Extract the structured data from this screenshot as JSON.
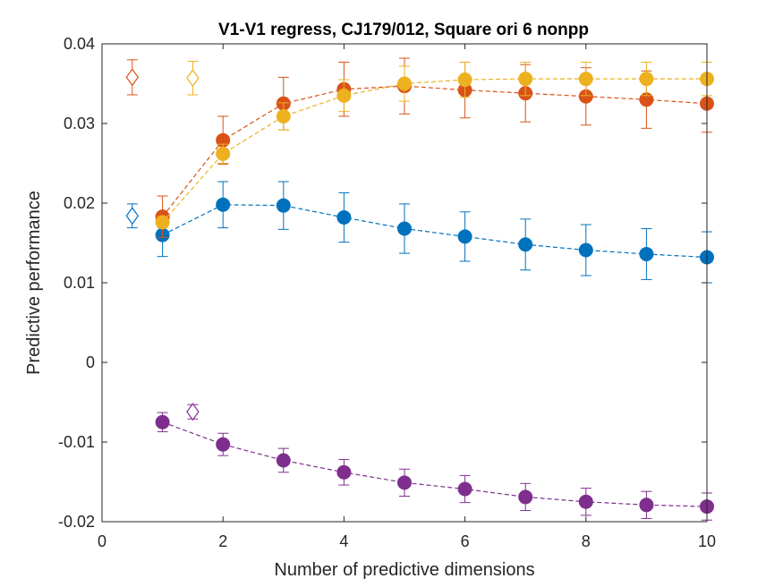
{
  "chart_data": {
    "type": "scatter",
    "title": "V1-V1 regress, CJ179/012, Square ori 6 nonpp",
    "xlabel": "Number of predictive dimensions",
    "ylabel": "Predictive performance",
    "xlim": [
      0,
      10
    ],
    "ylim": [
      -0.02,
      0.04
    ],
    "xticks": [
      0,
      2,
      4,
      6,
      8,
      10
    ],
    "xtick_labels": [
      "0",
      "2",
      "4",
      "6",
      "8",
      "10"
    ],
    "yticks": [
      -0.02,
      -0.01,
      0,
      0.01,
      0.02,
      0.03,
      0.04
    ],
    "ytick_labels": [
      "-0.02",
      "-0.01",
      "0",
      "0.01",
      "0.02",
      "0.03",
      "0.04"
    ],
    "grid": false,
    "box": true,
    "x": [
      1,
      2,
      3,
      4,
      5,
      6,
      7,
      8,
      9,
      10
    ],
    "series": [
      {
        "color": "#0072BD",
        "values": [
          0.016,
          0.0198,
          0.0197,
          0.0182,
          0.0168,
          0.0158,
          0.0148,
          0.0141,
          0.0136,
          0.0132
        ],
        "errors": [
          0.0027,
          0.0029,
          0.003,
          0.0031,
          0.0031,
          0.0031,
          0.0032,
          0.0032,
          0.0032,
          0.0032
        ],
        "reference": {
          "x": 0.5,
          "value": 0.0184,
          "error": 0.0015
        }
      },
      {
        "color": "#D95319",
        "values": [
          0.0183,
          0.0279,
          0.0325,
          0.0343,
          0.0347,
          0.0342,
          0.0338,
          0.0334,
          0.033,
          0.0325
        ],
        "errors": [
          0.0026,
          0.003,
          0.0033,
          0.0034,
          0.0035,
          0.0035,
          0.0036,
          0.0036,
          0.0036,
          0.0036
        ],
        "reference": {
          "x": 0.5,
          "value": 0.0358,
          "error": 0.0022
        }
      },
      {
        "color": "#EDB120",
        "values": [
          0.0176,
          0.0262,
          0.0309,
          0.0335,
          0.035,
          0.0355,
          0.0356,
          0.0356,
          0.0356,
          0.0356
        ],
        "errors": [
          0.0007,
          0.0012,
          0.0017,
          0.002,
          0.0022,
          0.0022,
          0.0021,
          0.0021,
          0.0021,
          0.0021
        ],
        "reference": {
          "x": 1.5,
          "value": 0.0357,
          "error": 0.0021
        }
      },
      {
        "color": "#7E2F8E",
        "values": [
          -0.0075,
          -0.0103,
          -0.0123,
          -0.0138,
          -0.0151,
          -0.0159,
          -0.0169,
          -0.0175,
          -0.0179,
          -0.0181
        ],
        "errors": [
          0.0012,
          0.0014,
          0.0015,
          0.0016,
          0.0017,
          0.0017,
          0.0017,
          0.0017,
          0.0017,
          0.0017
        ],
        "reference": {
          "x": 1.5,
          "value": -0.0062,
          "error": 0.0009
        }
      }
    ]
  }
}
